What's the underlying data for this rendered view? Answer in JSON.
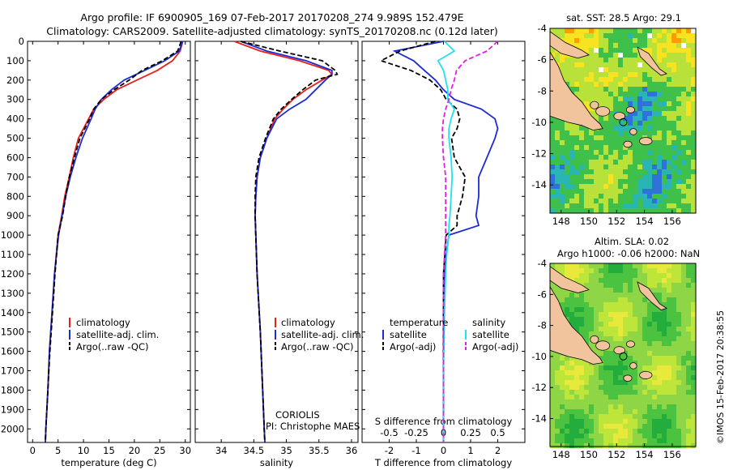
{
  "header": {
    "line1": "Argo profile: IF 6900905_169 07-Feb-2017 20170208_274 9.989S 152.479E",
    "line2": "Climatology: CARS2009. Satellite-adjusted climatology: synTS_20170208.nc (0.12d later)"
  },
  "colors": {
    "climatology": "#e8211b",
    "satellite": "#1c2bd6",
    "argo": "#000000",
    "sat_salinity": "#22e0ee",
    "argo_salinity": "#e41fe0"
  },
  "depth_ticks": [
    "0",
    "100",
    "200",
    "300",
    "400",
    "500",
    "600",
    "700",
    "800",
    "900",
    "1000",
    "1100",
    "1200",
    "1300",
    "1400",
    "1500",
    "1600",
    "1700",
    "1800",
    "1900",
    "2000"
  ],
  "legend_ts": {
    "climatology": "climatology",
    "satellite": "satellite-adj. clim.",
    "argo": "Argo(..raw -QC)"
  },
  "legend_diff": {
    "temp_head": "temperature",
    "sal_head": "salinity",
    "satellite": "satellite",
    "argo": "Argo(-adj)"
  },
  "credit": {
    "line1": "CORIOLIS",
    "line2": "PI: Christophe MAES"
  },
  "maps": {
    "sst_title": "sat. SST: 28.5 Argo: 29.1",
    "sla_title1": "Altim. SLA: 0.02",
    "sla_title2": "Argo h1000: -0.06 h2000: NaN",
    "lat_ticks": [
      "-4",
      "-6",
      "-8",
      "-10",
      "-12",
      "-14"
    ],
    "lon_ticks": [
      "148",
      "150",
      "152",
      "154",
      "156"
    ]
  },
  "stamp": "©IMOS 15-Feb-2017 20:38:55",
  "chart_data": [
    {
      "type": "line",
      "xlabel": "temperature (deg C)",
      "ylabel": "",
      "xlim": [
        -1,
        31
      ],
      "ylim": [
        2070,
        0
      ],
      "xticks": [
        "0",
        "5",
        "10",
        "15",
        "20",
        "25",
        "30"
      ],
      "y": [
        0,
        50,
        100,
        150,
        200,
        250,
        300,
        350,
        400,
        500,
        600,
        700,
        800,
        900,
        1000,
        1200,
        1400,
        1600,
        1800,
        2000,
        2070
      ],
      "series": [
        {
          "name": "climatology",
          "values": [
            29.5,
            29,
            27.5,
            24.5,
            20.5,
            16.5,
            14,
            12,
            11,
            9,
            8,
            7.2,
            6.3,
            5.7,
            5,
            4.3,
            3.8,
            3.3,
            3,
            2.6,
            2.5
          ]
        },
        {
          "name": "satellite-adj. clim.",
          "values": [
            29.5,
            28.8,
            26,
            22,
            18,
            15.5,
            13.5,
            12.3,
            11.5,
            9.8,
            8.5,
            7.4,
            6.5,
            5.8,
            5.1,
            4.3,
            3.8,
            3.3,
            3,
            2.6,
            2.5
          ]
        },
        {
          "name": "Argo(..raw -QC)",
          "values": [
            29.2,
            28.5,
            25.5,
            21.5,
            19,
            16,
            13.5,
            12,
            11.2,
            9.3,
            8.2,
            7.2,
            6.5,
            5.9,
            5,
            4.4,
            3.9,
            3.4,
            3,
            2.6,
            2.5
          ]
        }
      ]
    },
    {
      "type": "line",
      "xlabel": "salinity",
      "ylabel": "",
      "xlim": [
        33.6,
        36.1
      ],
      "ylim": [
        2070,
        0
      ],
      "xticks": [
        "34",
        "34.5",
        "35",
        "35.5",
        "36"
      ],
      "y": [
        0,
        50,
        100,
        150,
        170,
        200,
        250,
        300,
        350,
        400,
        500,
        600,
        700,
        800,
        900,
        1000,
        1200,
        1500,
        2000,
        2070
      ],
      "series": [
        {
          "name": "climatology",
          "values": [
            34.2,
            34.6,
            35.2,
            35.65,
            35.7,
            35.55,
            35.3,
            35.1,
            34.95,
            34.82,
            34.7,
            34.6,
            34.55,
            34.53,
            34.52,
            34.53,
            34.55,
            34.6,
            34.66,
            34.67
          ]
        },
        {
          "name": "satellite-adj. clim.",
          "values": [
            34.3,
            34.7,
            35.3,
            35.7,
            35.7,
            35.6,
            35.45,
            35.3,
            35.05,
            34.85,
            34.7,
            34.6,
            34.55,
            34.53,
            34.52,
            34.53,
            34.55,
            34.6,
            34.66,
            34.67
          ]
        },
        {
          "name": "Argo(..raw -QC)",
          "values": [
            34.3,
            34.9,
            35.55,
            35.75,
            35.78,
            35.45,
            35.25,
            35.08,
            34.92,
            34.8,
            34.68,
            34.58,
            34.53,
            34.52,
            34.52,
            34.53,
            34.55,
            34.6,
            34.66,
            34.67
          ]
        }
      ]
    },
    {
      "type": "line",
      "xlabel": "T difference from climatology",
      "xlabel_top": "S difference from climatology",
      "xlim": [
        -3,
        3
      ],
      "ylim": [
        2070,
        0
      ],
      "xticks": [
        "-2",
        "-1",
        "0",
        "1",
        "2"
      ],
      "xticks_top": [
        "-0.5",
        "-0.25",
        "0",
        "0.25",
        "0.5"
      ],
      "y": [
        0,
        50,
        100,
        150,
        200,
        250,
        300,
        350,
        400,
        450,
        500,
        600,
        700,
        800,
        900,
        950,
        1000,
        1100,
        1200,
        1400,
        1700,
        2000,
        2070
      ],
      "series": [
        {
          "name": "temperature satellite",
          "values": [
            0,
            -1.8,
            -1.1,
            -0.7,
            -0.3,
            0,
            0.4,
            1.4,
            1.9,
            2,
            1.9,
            1.6,
            1.3,
            1.3,
            1.2,
            1.3,
            0.2,
            0.1,
            0.05,
            0,
            0,
            0,
            0
          ]
        },
        {
          "name": "temperature Argo(-adj)",
          "values": [
            -0.3,
            -1.6,
            -2.3,
            -1.2,
            -0.5,
            -0.1,
            0.1,
            0.5,
            0.6,
            0.5,
            0.3,
            0.4,
            0.8,
            0.7,
            0.5,
            0.5,
            0.1,
            0.05,
            0,
            0,
            0,
            0,
            0
          ]
        },
        {
          "name": "salinity satellite",
          "values": [
            0.01,
            0.1,
            -0.05,
            0,
            0.02,
            0.04,
            0.04,
            0.1,
            0.07,
            0.05,
            0.05,
            0.07,
            0.08,
            0.07,
            0.06,
            0.05,
            0.05,
            0.03,
            0.02,
            0.01,
            0,
            0,
            0
          ]
        },
        {
          "name": "salinity Argo(-adj)",
          "values": [
            0.5,
            0.4,
            0.2,
            0.12,
            0.1,
            0.07,
            0.05,
            0.02,
            0,
            -0.01,
            -0.01,
            0,
            0.02,
            0.02,
            0.02,
            0.02,
            0.02,
            0.01,
            0,
            0,
            0,
            0,
            0
          ]
        }
      ]
    }
  ]
}
